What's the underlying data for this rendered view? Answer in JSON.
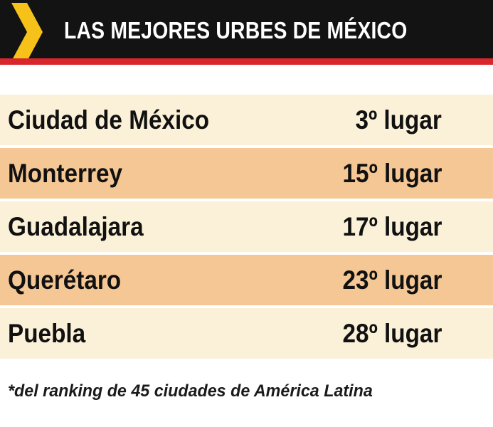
{
  "header": {
    "title": "LAS MEJORES URBES DE MÉXICO",
    "icon": "chevron-right-icon",
    "colors": {
      "background": "#131313",
      "stripe": "#d9262d",
      "chevron": "#f6c21a",
      "title": "#ffffff"
    }
  },
  "table": {
    "rows": [
      {
        "city": "Ciudad de México",
        "rank": "3º lugar"
      },
      {
        "city": "Monterrey",
        "rank": "15º lugar"
      },
      {
        "city": "Guadalajara",
        "rank": "17º lugar"
      },
      {
        "city": "Querétaro",
        "rank": "23º lugar"
      },
      {
        "city": "Puebla",
        "rank": "28º lugar"
      }
    ],
    "colors": {
      "row_light": "#fbf1d8",
      "row_dark": "#f5c794"
    }
  },
  "footnote": "*del ranking de 45 ciudades de América Latina"
}
